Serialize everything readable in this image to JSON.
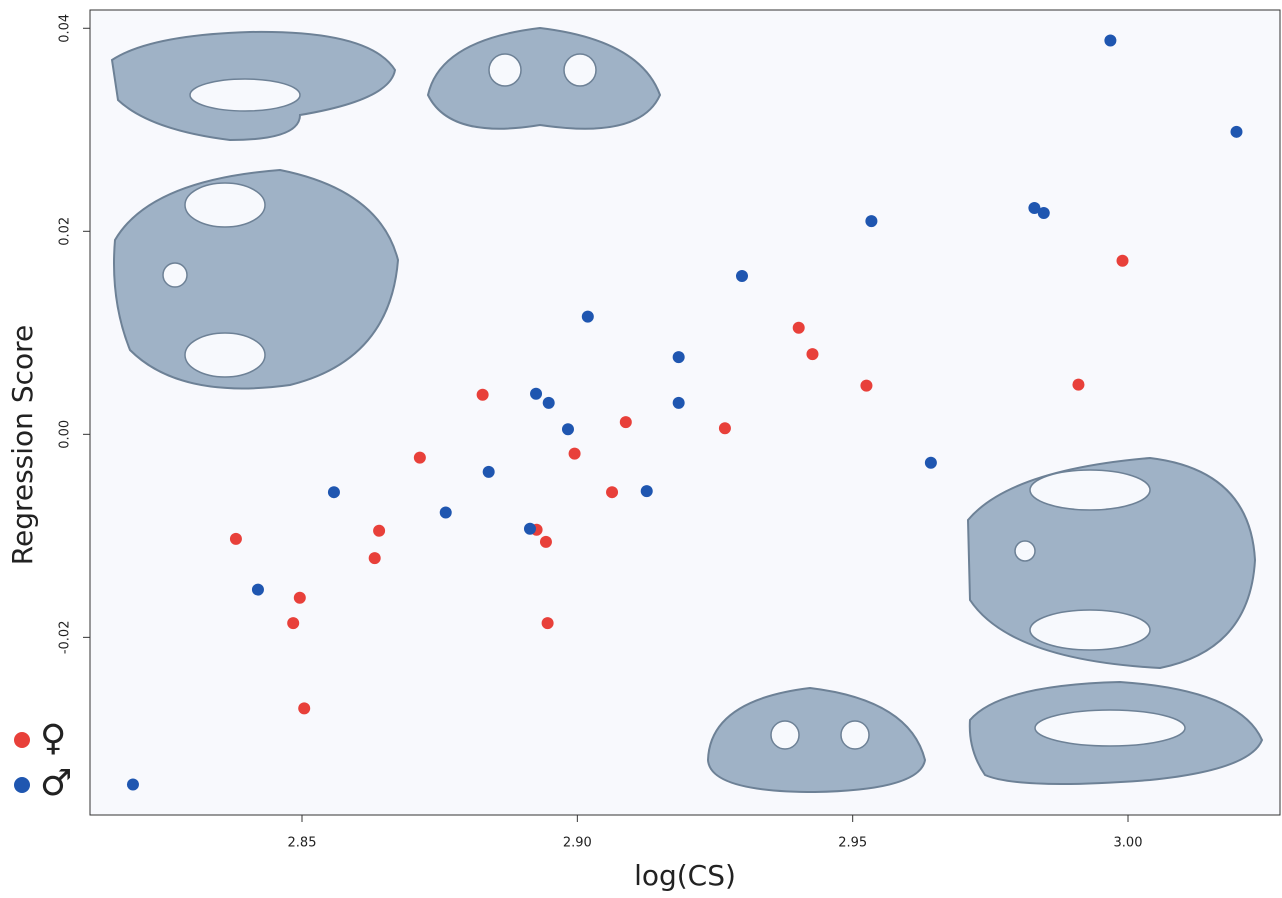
{
  "chart_data": {
    "type": "scatter",
    "xlabel": "log(CS)",
    "ylabel": "Regression Score",
    "xlim": [
      2.8115,
      3.0276
    ],
    "ylim": [
      -0.0375,
      0.0418
    ],
    "xticks": [
      2.85,
      {
        "value": 2.9,
        "label": "2.90"
      },
      2.95,
      {
        "value": 3,
        "label": "3.00"
      }
    ],
    "yticks": [
      -0.02,
      {
        "value": 0,
        "label": "0.00"
      },
      0.02,
      0.04
    ],
    "series": [
      {
        "name": "♀",
        "color": "#e8403a",
        "x": [
          2.838,
          2.8496,
          2.8484,
          2.8504,
          2.8632,
          2.864,
          2.8714,
          2.8828,
          2.8926,
          2.8943,
          2.8946,
          2.8995,
          2.9063,
          2.9088,
          2.9268,
          2.9402,
          2.9427,
          2.9525,
          2.991,
          2.999
        ],
        "values": [
          -0.0103,
          -0.0161,
          -0.0186,
          -0.027,
          -0.0122,
          -0.0095,
          -0.0023,
          0.0039,
          -0.0094,
          -0.0106,
          -0.0186,
          -0.0019,
          -0.0057,
          0.0012,
          0.0006,
          0.0105,
          0.0079,
          0.0048,
          0.0049,
          0.0171
        ]
      },
      {
        "name": "♂",
        "color": "#1f56b0",
        "x": [
          2.8193,
          2.842,
          2.8558,
          2.8761,
          2.8839,
          2.8914,
          2.8925,
          2.8948,
          2.8983,
          2.9019,
          2.9126,
          2.9184,
          2.9184,
          2.9299,
          2.9534,
          2.9642,
          2.983,
          2.9847,
          2.9968,
          3.0197
        ],
        "values": [
          -0.0345,
          -0.0153,
          -0.0057,
          -0.0077,
          -0.0037,
          -0.0093,
          0.004,
          0.0031,
          0.0005,
          0.0116,
          -0.0056,
          0.0076,
          0.0031,
          0.0156,
          0.021,
          -0.0028,
          0.0223,
          0.0218,
          0.0388,
          0.0298
        ]
      }
    ]
  }
}
